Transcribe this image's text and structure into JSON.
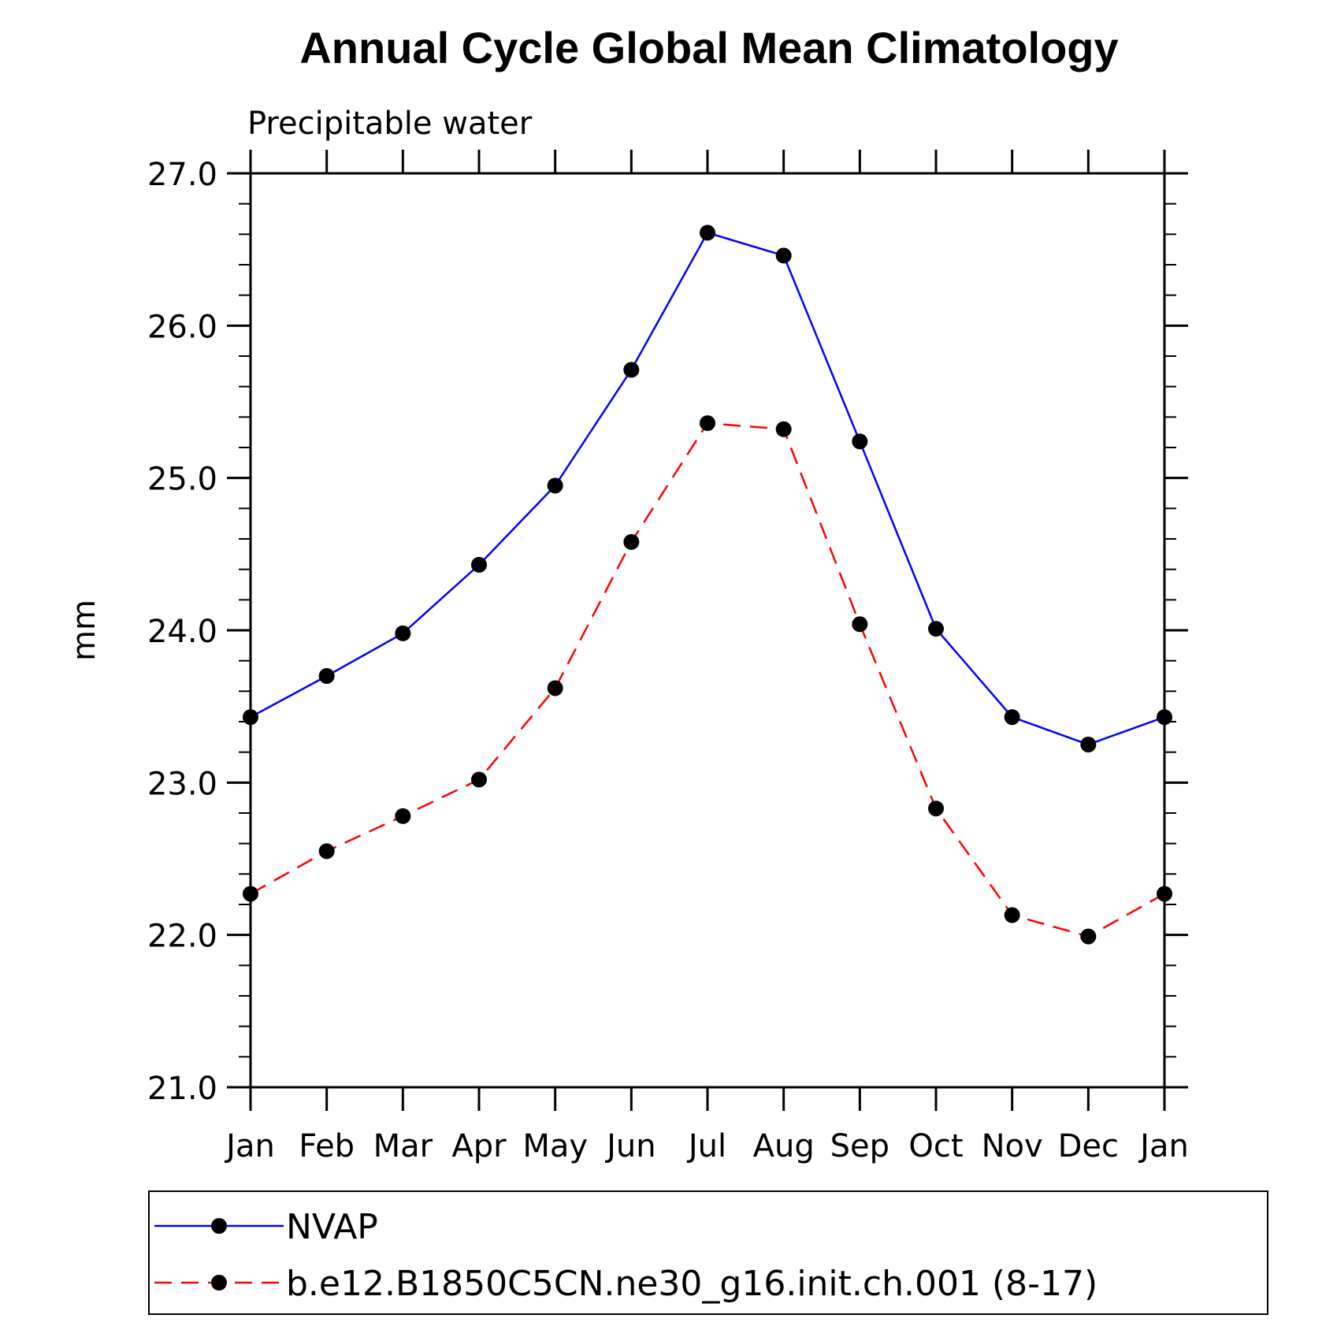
{
  "chart_data": {
    "type": "line",
    "title": "Annual Cycle Global Mean Climatology",
    "subtitle": "Precipitable water",
    "ylabel": "mm",
    "xlabel": "",
    "categories": [
      "Jan",
      "Feb",
      "Mar",
      "Apr",
      "May",
      "Jun",
      "Jul",
      "Aug",
      "Sep",
      "Oct",
      "Nov",
      "Dec",
      "Jan"
    ],
    "ylim": [
      21.0,
      27.0
    ],
    "yticks": [
      "21.0",
      "22.0",
      "23.0",
      "24.0",
      "25.0",
      "26.0",
      "27.0"
    ],
    "grid": false,
    "legend_position": "bottom",
    "series": [
      {
        "name": "NVAP",
        "color": "#0000ff",
        "style": "solid",
        "values": [
          23.43,
          23.7,
          23.98,
          24.43,
          24.95,
          25.71,
          26.61,
          26.46,
          25.24,
          24.01,
          23.43,
          23.25,
          23.43
        ]
      },
      {
        "name": "b.e12.B1850C5CN.ne30_g16.init.ch.001 (8-17)",
        "color": "#ff0000",
        "style": "dashed",
        "values": [
          22.27,
          22.55,
          22.78,
          23.02,
          23.62,
          24.58,
          25.36,
          25.32,
          24.04,
          22.83,
          22.13,
          21.99,
          22.27
        ]
      }
    ]
  }
}
